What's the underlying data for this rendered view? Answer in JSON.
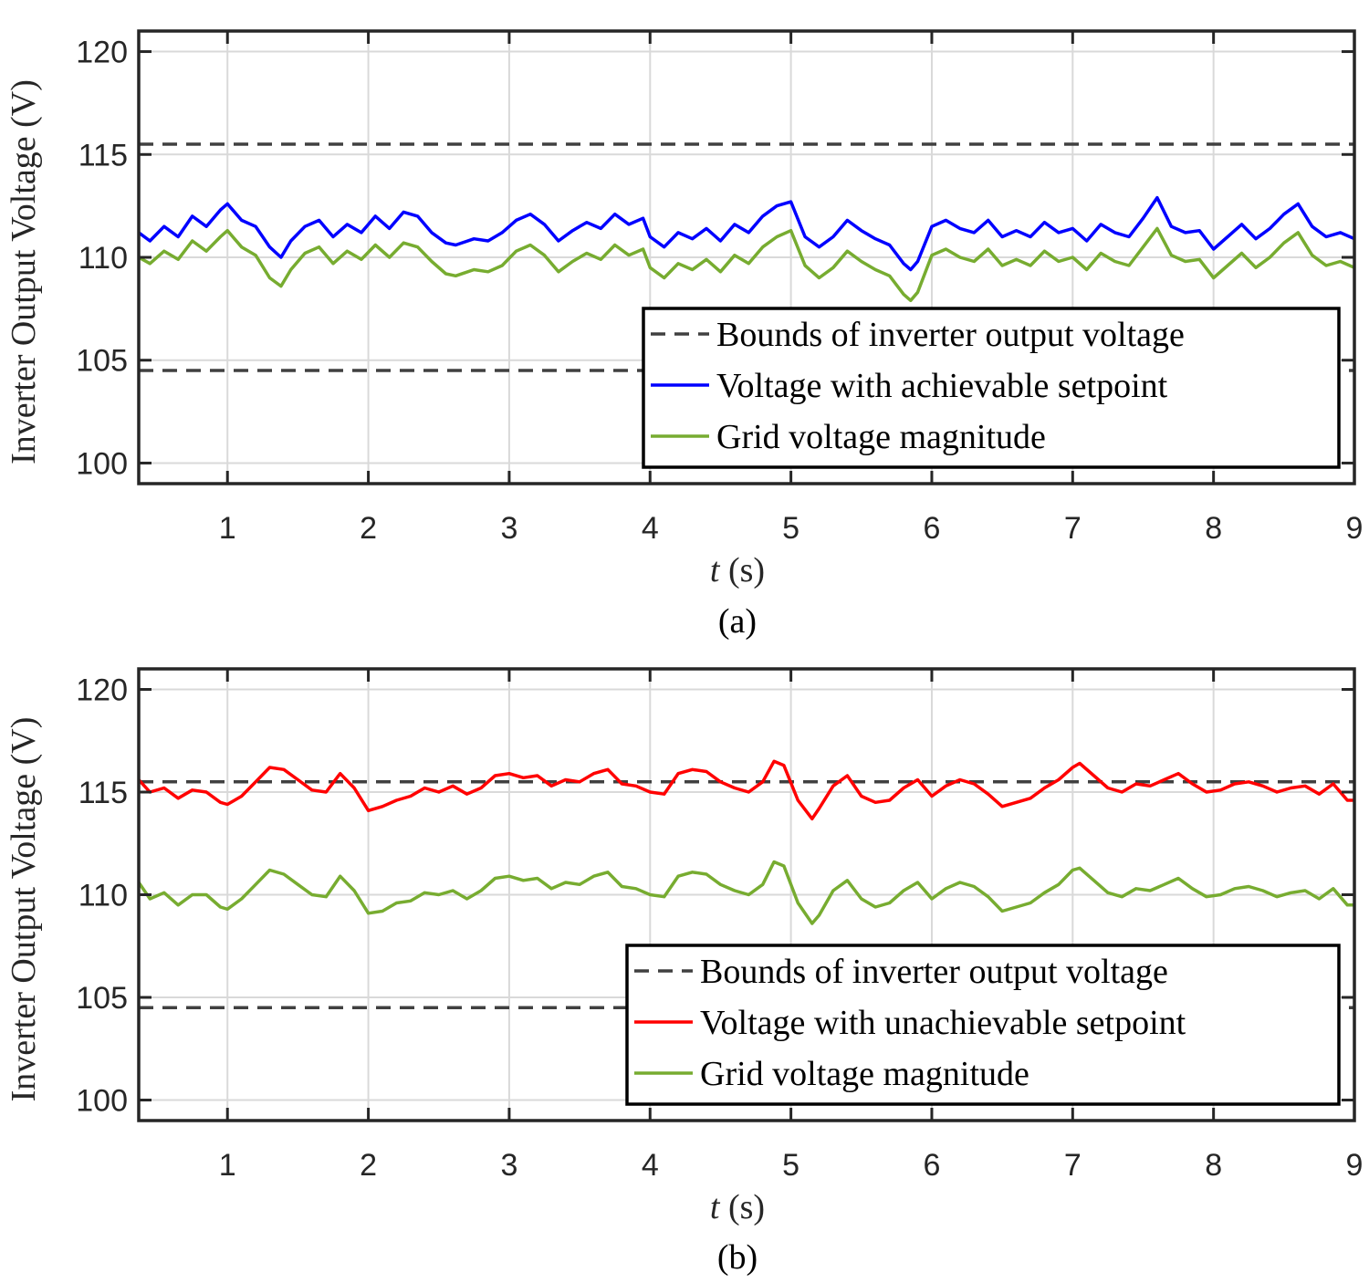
{
  "colors": {
    "bounds": "#404040",
    "achievable": "#0000ff",
    "unachievable": "#ff0000",
    "grid_voltage": "#77ac30",
    "gridline": "#d9d9d9",
    "axis": "#262626"
  },
  "chart_data": [
    {
      "type": "line",
      "caption": "(a)",
      "xlabel_var": "t",
      "xlabel_unit": " (s)",
      "ylabel": "Inverter Output Voltage (V)",
      "xlim": [
        0.37,
        9
      ],
      "ylim": [
        99,
        121
      ],
      "xticks": [
        1,
        2,
        3,
        4,
        5,
        6,
        7,
        8,
        9
      ],
      "xtick_labels": [
        "1",
        "2",
        "3",
        "4",
        "5",
        "6",
        "7",
        "8",
        "9"
      ],
      "yticks": [
        100,
        105,
        110,
        115,
        120
      ],
      "ytick_labels": [
        "100",
        "105",
        "110",
        "115",
        "120"
      ],
      "grid": true,
      "legend_position": "bottom-right",
      "series": [
        {
          "name": "Bounds of inverter output voltage",
          "style": "dashed",
          "color_key": "bounds",
          "hlines": [
            115.5,
            104.5
          ]
        },
        {
          "name": "Voltage with achievable setpoint",
          "style": "solid",
          "color_key": "achievable",
          "x": [
            0.37,
            0.45,
            0.55,
            0.65,
            0.75,
            0.85,
            0.95,
            1.0,
            1.1,
            1.2,
            1.3,
            1.38,
            1.45,
            1.55,
            1.65,
            1.75,
            1.85,
            1.95,
            2.05,
            2.15,
            2.25,
            2.35,
            2.45,
            2.55,
            2.62,
            2.75,
            2.85,
            2.95,
            3.05,
            3.15,
            3.25,
            3.35,
            3.45,
            3.55,
            3.65,
            3.75,
            3.85,
            3.95,
            4.0,
            4.1,
            4.2,
            4.3,
            4.4,
            4.5,
            4.6,
            4.7,
            4.8,
            4.9,
            5.0,
            5.1,
            5.2,
            5.3,
            5.4,
            5.5,
            5.6,
            5.7,
            5.8,
            5.85,
            5.9,
            6.0,
            6.1,
            6.2,
            6.3,
            6.4,
            6.5,
            6.6,
            6.7,
            6.8,
            6.9,
            7.0,
            7.1,
            7.2,
            7.3,
            7.4,
            7.5,
            7.6,
            7.7,
            7.8,
            7.9,
            8.0,
            8.1,
            8.2,
            8.3,
            8.4,
            8.5,
            8.6,
            8.7,
            8.8,
            8.9,
            9.0
          ],
          "values": [
            111.2,
            110.8,
            111.5,
            111.0,
            112.0,
            111.5,
            112.3,
            112.6,
            111.8,
            111.5,
            110.5,
            110.0,
            110.8,
            111.5,
            111.8,
            111.0,
            111.6,
            111.2,
            112.0,
            111.4,
            112.2,
            112.0,
            111.2,
            110.7,
            110.6,
            110.9,
            110.8,
            111.2,
            111.8,
            112.1,
            111.6,
            110.8,
            111.3,
            111.7,
            111.4,
            112.1,
            111.6,
            111.9,
            111.0,
            110.5,
            111.2,
            110.9,
            111.4,
            110.8,
            111.6,
            111.2,
            112.0,
            112.5,
            112.7,
            111.0,
            110.5,
            111.0,
            111.8,
            111.3,
            110.9,
            110.6,
            109.7,
            109.4,
            109.8,
            111.5,
            111.8,
            111.4,
            111.2,
            111.8,
            111.0,
            111.3,
            111.0,
            111.7,
            111.2,
            111.4,
            110.8,
            111.6,
            111.2,
            111.0,
            111.9,
            112.9,
            111.5,
            111.2,
            111.3,
            110.4,
            111.0,
            111.6,
            110.9,
            111.4,
            112.1,
            112.6,
            111.5,
            111.0,
            111.2,
            110.9
          ]
        },
        {
          "name": "Grid voltage magnitude",
          "style": "solid",
          "color_key": "grid_voltage",
          "x": [
            0.37,
            0.45,
            0.55,
            0.65,
            0.75,
            0.85,
            0.95,
            1.0,
            1.1,
            1.2,
            1.3,
            1.38,
            1.45,
            1.55,
            1.65,
            1.75,
            1.85,
            1.95,
            2.05,
            2.15,
            2.25,
            2.35,
            2.45,
            2.55,
            2.62,
            2.75,
            2.85,
            2.95,
            3.05,
            3.15,
            3.25,
            3.35,
            3.45,
            3.55,
            3.65,
            3.75,
            3.85,
            3.95,
            4.0,
            4.1,
            4.2,
            4.3,
            4.4,
            4.5,
            4.6,
            4.7,
            4.8,
            4.9,
            5.0,
            5.1,
            5.2,
            5.3,
            5.4,
            5.5,
            5.6,
            5.7,
            5.8,
            5.85,
            5.9,
            6.0,
            6.1,
            6.2,
            6.3,
            6.4,
            6.5,
            6.6,
            6.7,
            6.8,
            6.9,
            7.0,
            7.1,
            7.2,
            7.3,
            7.4,
            7.5,
            7.6,
            7.7,
            7.8,
            7.9,
            8.0,
            8.1,
            8.2,
            8.3,
            8.4,
            8.5,
            8.6,
            8.7,
            8.8,
            8.9,
            9.0
          ],
          "values": [
            110.0,
            109.7,
            110.3,
            109.9,
            110.8,
            110.3,
            111.0,
            111.3,
            110.5,
            110.1,
            109.0,
            108.6,
            109.4,
            110.2,
            110.5,
            109.7,
            110.3,
            109.9,
            110.6,
            110.0,
            110.7,
            110.5,
            109.8,
            109.2,
            109.1,
            109.4,
            109.3,
            109.6,
            110.3,
            110.6,
            110.1,
            109.3,
            109.8,
            110.2,
            109.9,
            110.6,
            110.1,
            110.4,
            109.5,
            109.0,
            109.7,
            109.4,
            109.9,
            109.3,
            110.1,
            109.7,
            110.5,
            111.0,
            111.3,
            109.6,
            109.0,
            109.5,
            110.3,
            109.8,
            109.4,
            109.1,
            108.2,
            107.9,
            108.3,
            110.1,
            110.4,
            110.0,
            109.8,
            110.4,
            109.6,
            109.9,
            109.6,
            110.3,
            109.8,
            110.0,
            109.4,
            110.2,
            109.8,
            109.6,
            110.5,
            111.4,
            110.1,
            109.8,
            109.9,
            109.0,
            109.6,
            110.2,
            109.5,
            110.0,
            110.7,
            111.2,
            110.1,
            109.6,
            109.8,
            109.5
          ]
        }
      ]
    },
    {
      "type": "line",
      "caption": "(b)",
      "xlabel_var": "t",
      "xlabel_unit": " (s)",
      "ylabel": "Inverter Output Voltage (V)",
      "xlim": [
        0.37,
        9
      ],
      "ylim": [
        99,
        121
      ],
      "xticks": [
        1,
        2,
        3,
        4,
        5,
        6,
        7,
        8,
        9
      ],
      "xtick_labels": [
        "1",
        "2",
        "3",
        "4",
        "5",
        "6",
        "7",
        "8",
        "9"
      ],
      "yticks": [
        100,
        105,
        110,
        115,
        120
      ],
      "ytick_labels": [
        "100",
        "105",
        "110",
        "115",
        "120"
      ],
      "grid": true,
      "legend_position": "bottom-right",
      "series": [
        {
          "name": "Bounds of inverter output voltage",
          "style": "dashed",
          "color_key": "bounds",
          "hlines": [
            115.5,
            104.5
          ]
        },
        {
          "name": "Voltage with unachievable setpoint",
          "style": "solid",
          "color_key": "unachievable",
          "x": [
            0.37,
            0.45,
            0.55,
            0.65,
            0.75,
            0.85,
            0.95,
            1.0,
            1.1,
            1.2,
            1.3,
            1.4,
            1.5,
            1.6,
            1.7,
            1.8,
            1.9,
            2.0,
            2.1,
            2.2,
            2.3,
            2.4,
            2.5,
            2.6,
            2.7,
            2.8,
            2.9,
            3.0,
            3.1,
            3.2,
            3.3,
            3.4,
            3.5,
            3.6,
            3.7,
            3.8,
            3.9,
            4.0,
            4.1,
            4.2,
            4.3,
            4.4,
            4.5,
            4.6,
            4.7,
            4.8,
            4.88,
            4.95,
            5.05,
            5.15,
            5.2,
            5.3,
            5.4,
            5.5,
            5.6,
            5.7,
            5.8,
            5.9,
            6.0,
            6.1,
            6.2,
            6.3,
            6.4,
            6.5,
            6.6,
            6.7,
            6.8,
            6.9,
            7.0,
            7.05,
            7.15,
            7.25,
            7.35,
            7.45,
            7.55,
            7.65,
            7.75,
            7.85,
            7.95,
            8.05,
            8.15,
            8.25,
            8.35,
            8.45,
            8.55,
            8.65,
            8.75,
            8.85,
            8.95,
            9.0
          ],
          "values": [
            115.6,
            115.0,
            115.2,
            114.7,
            115.1,
            115.0,
            114.5,
            114.4,
            114.8,
            115.5,
            116.2,
            116.1,
            115.6,
            115.1,
            115.0,
            115.9,
            115.2,
            114.1,
            114.3,
            114.6,
            114.8,
            115.2,
            115.0,
            115.3,
            114.9,
            115.2,
            115.8,
            115.9,
            115.7,
            115.8,
            115.3,
            115.6,
            115.5,
            115.9,
            116.1,
            115.4,
            115.3,
            115.0,
            114.9,
            115.9,
            116.1,
            116.0,
            115.5,
            115.2,
            115.0,
            115.5,
            116.5,
            116.3,
            114.6,
            113.7,
            114.2,
            115.3,
            115.8,
            114.8,
            114.5,
            114.6,
            115.2,
            115.6,
            114.8,
            115.3,
            115.6,
            115.4,
            114.9,
            114.3,
            114.5,
            114.7,
            115.2,
            115.6,
            116.2,
            116.4,
            115.8,
            115.2,
            115.0,
            115.4,
            115.3,
            115.6,
            115.9,
            115.4,
            115.0,
            115.1,
            115.4,
            115.5,
            115.3,
            115.0,
            115.2,
            115.3,
            114.9,
            115.4,
            114.6,
            114.6
          ]
        },
        {
          "name": "Grid voltage magnitude",
          "style": "solid",
          "color_key": "grid_voltage",
          "x": [
            0.37,
            0.45,
            0.55,
            0.65,
            0.75,
            0.85,
            0.95,
            1.0,
            1.1,
            1.2,
            1.3,
            1.4,
            1.5,
            1.6,
            1.7,
            1.8,
            1.9,
            2.0,
            2.1,
            2.2,
            2.3,
            2.4,
            2.5,
            2.6,
            2.7,
            2.8,
            2.9,
            3.0,
            3.1,
            3.2,
            3.3,
            3.4,
            3.5,
            3.6,
            3.7,
            3.8,
            3.9,
            4.0,
            4.1,
            4.2,
            4.3,
            4.4,
            4.5,
            4.6,
            4.7,
            4.8,
            4.88,
            4.95,
            5.05,
            5.15,
            5.2,
            5.3,
            5.4,
            5.5,
            5.6,
            5.7,
            5.8,
            5.9,
            6.0,
            6.1,
            6.2,
            6.3,
            6.4,
            6.5,
            6.6,
            6.7,
            6.8,
            6.9,
            7.0,
            7.05,
            7.15,
            7.25,
            7.35,
            7.45,
            7.55,
            7.65,
            7.75,
            7.85,
            7.95,
            8.05,
            8.15,
            8.25,
            8.35,
            8.45,
            8.55,
            8.65,
            8.75,
            8.85,
            8.95,
            9.0
          ],
          "values": [
            110.6,
            109.8,
            110.1,
            109.5,
            110.0,
            110.0,
            109.4,
            109.3,
            109.8,
            110.5,
            111.2,
            111.0,
            110.5,
            110.0,
            109.9,
            110.9,
            110.2,
            109.1,
            109.2,
            109.6,
            109.7,
            110.1,
            110.0,
            110.2,
            109.8,
            110.2,
            110.8,
            110.9,
            110.7,
            110.8,
            110.3,
            110.6,
            110.5,
            110.9,
            111.1,
            110.4,
            110.3,
            110.0,
            109.9,
            110.9,
            111.1,
            111.0,
            110.5,
            110.2,
            110.0,
            110.5,
            111.6,
            111.4,
            109.6,
            108.6,
            109.0,
            110.2,
            110.7,
            109.8,
            109.4,
            109.6,
            110.2,
            110.6,
            109.8,
            110.3,
            110.6,
            110.4,
            109.9,
            109.2,
            109.4,
            109.6,
            110.1,
            110.5,
            111.2,
            111.3,
            110.7,
            110.1,
            109.9,
            110.3,
            110.2,
            110.5,
            110.8,
            110.3,
            109.9,
            110.0,
            110.3,
            110.4,
            110.2,
            109.9,
            110.1,
            110.2,
            109.8,
            110.3,
            109.5,
            109.5
          ]
        }
      ]
    }
  ]
}
